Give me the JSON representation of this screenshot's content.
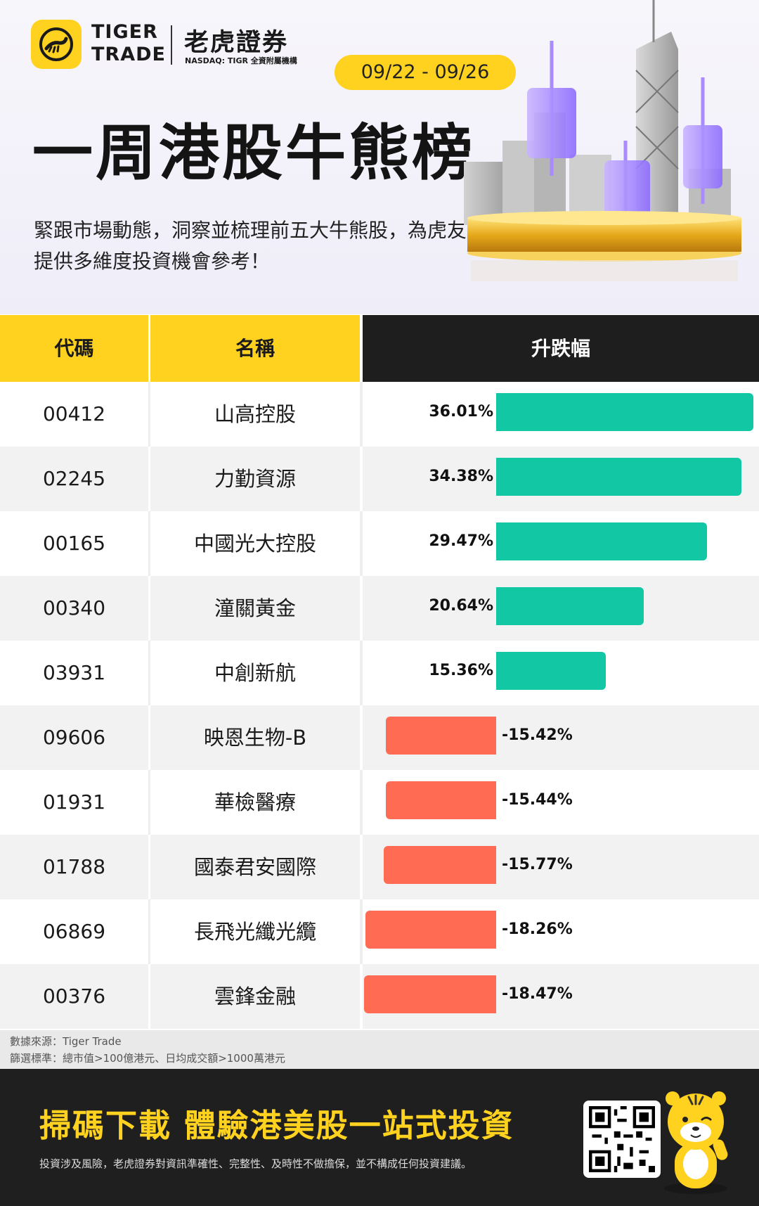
{
  "brand": {
    "logo_en_line1": "TIGER",
    "logo_en_line2": "TRADE",
    "logo_cn": "老虎證券",
    "logo_sub": "NASDAQ: TIGR 全資附屬機構"
  },
  "date_range": "09/22 - 09/26",
  "title": "一周港股牛熊榜",
  "subtitle": "緊跟市場動態，洞察並梳理前五大牛熊股，為虎友提供多維度投資機會參考！",
  "table": {
    "headers": {
      "code": "代碼",
      "name": "名稱",
      "change": "升跌幅"
    },
    "rows": [
      {
        "code": "00412",
        "name": "山高控股",
        "change": 36.01,
        "change_label": "36.01%"
      },
      {
        "code": "02245",
        "name": "力勤資源",
        "change": 34.38,
        "change_label": "34.38%"
      },
      {
        "code": "00165",
        "name": "中國光大控股",
        "change": 29.47,
        "change_label": "29.47%"
      },
      {
        "code": "00340",
        "name": "潼關黃金",
        "change": 20.64,
        "change_label": "20.64%"
      },
      {
        "code": "03931",
        "name": "中創新航",
        "change": 15.36,
        "change_label": "15.36%"
      },
      {
        "code": "09606",
        "name": "映恩生物-B",
        "change": -15.42,
        "change_label": "-15.42%"
      },
      {
        "code": "01931",
        "name": "華檢醫療",
        "change": -15.44,
        "change_label": "-15.44%"
      },
      {
        "code": "01788",
        "name": "國泰君安國際",
        "change": -15.77,
        "change_label": "-15.77%"
      },
      {
        "code": "06869",
        "name": "長飛光纖光纜",
        "change": -18.26,
        "change_label": "-18.26%"
      },
      {
        "code": "00376",
        "name": "雲鋒金融",
        "change": -18.47,
        "change_label": "-18.47%"
      }
    ]
  },
  "note": {
    "source": "數據來源：Tiger Trade",
    "criteria": "篩選標準：總市值>100億港元、日均成交額>1000萬港元"
  },
  "footer": {
    "cta": "掃碼下載 體驗港美股一站式投資",
    "disclaimer": "投資涉及風險，老虎證券對資訊準確性、完整性、及時性不做擔保，並不構成任何投資建議。"
  },
  "colors": {
    "brand_yellow": "#ffd21f",
    "positive": "#12c8a4",
    "negative": "#ff6b53",
    "dark": "#1f1f1f"
  },
  "icons": [
    "tiger-logo-icon",
    "qr-code-icon",
    "tiger-mascot-icon",
    "city-skyline-icon"
  ]
}
